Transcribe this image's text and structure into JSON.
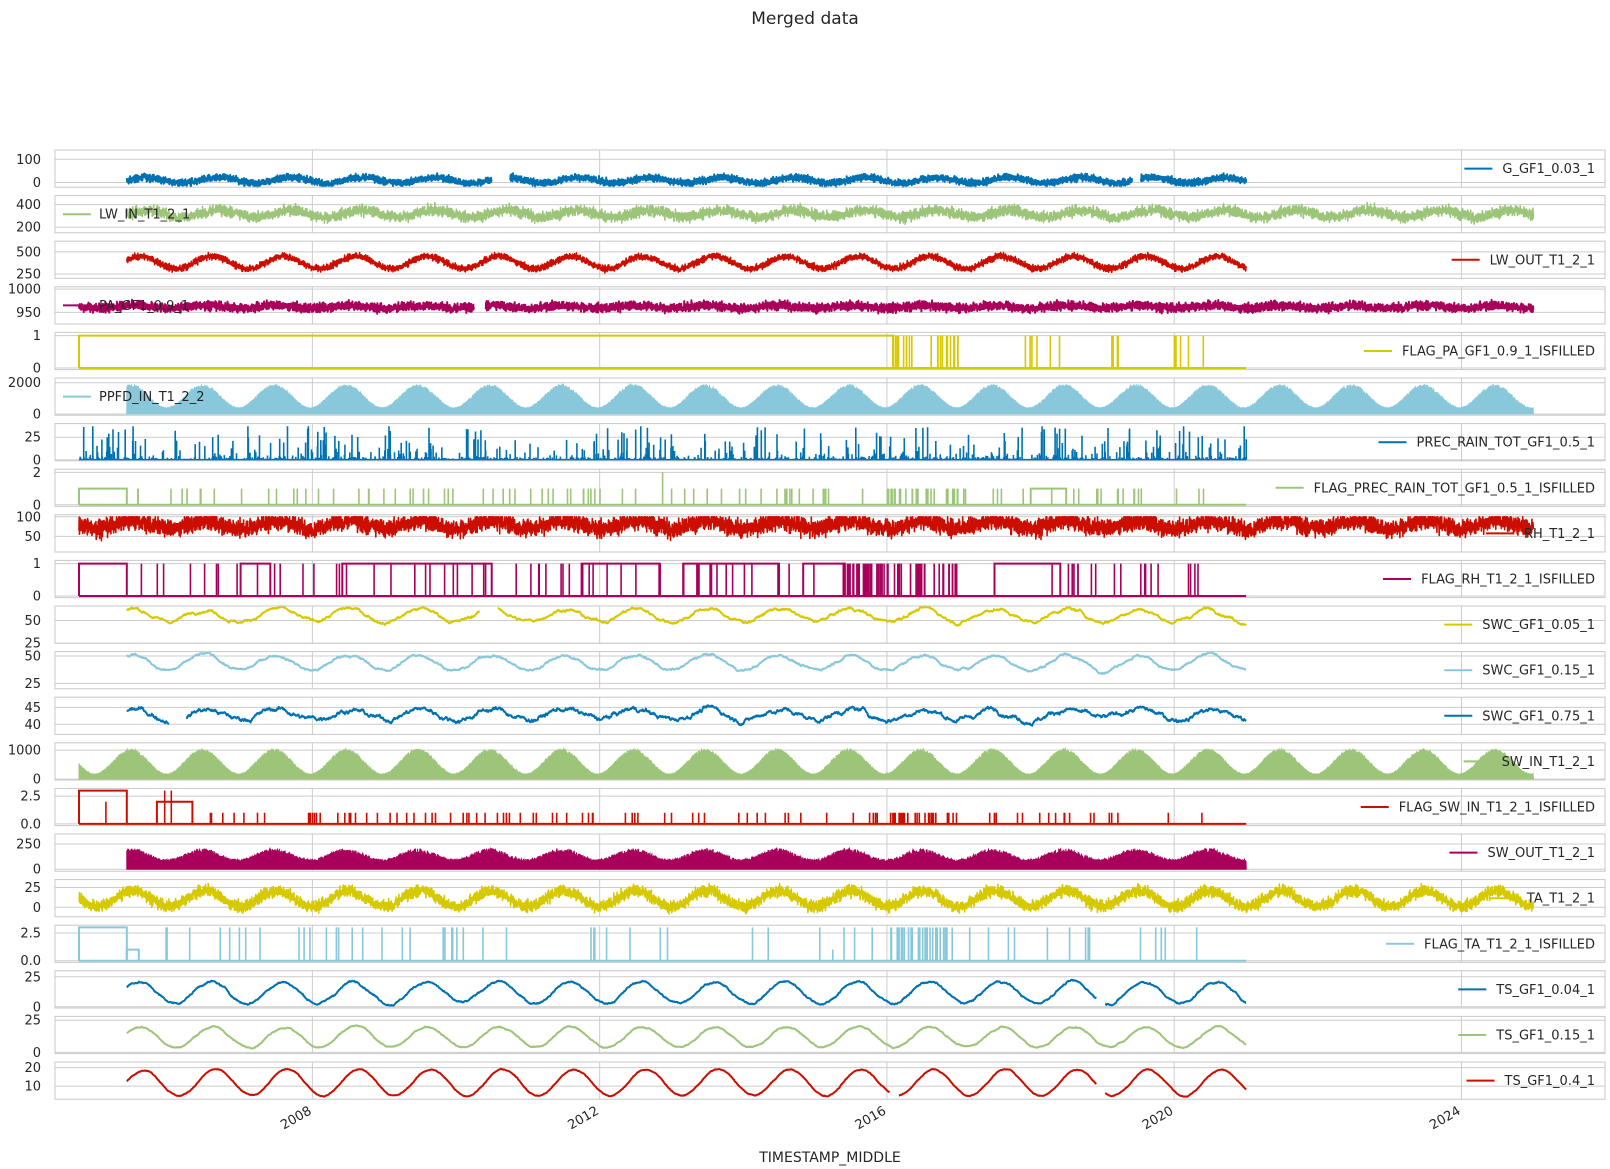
{
  "chart_data": {
    "type": "line",
    "title": "Merged data",
    "xlabel": "TIMESTAMP_MIDDLE",
    "x_range": [
      "2004-06-01",
      "2025-12-31"
    ],
    "x_ticks": [
      "2008",
      "2012",
      "2016",
      "2020",
      "2024"
    ],
    "grid": true,
    "colors": {
      "blue": "#0072b2",
      "green": "#9dc57a",
      "red": "#cc0e00",
      "magenta": "#a8005b",
      "yellow": "#d7c900",
      "cyan": "#89c8da"
    },
    "panels": [
      {
        "series": "G_GF1_0.03_1",
        "color": "#0072b2",
        "legend_pos": "right",
        "style": "osc",
        "start": "2005-06-01",
        "end": "2021-01-01",
        "ylim": [
          -20,
          140
        ],
        "yticks": [
          "100",
          "0"
        ],
        "ytick_values": [
          100,
          0
        ],
        "center": 10,
        "seasonal_amp": 12,
        "noise": 14,
        "peak": 0.7,
        "gaps": [
          [
            "2010-07-01",
            "2010-10-01"
          ],
          [
            "2019-06-01",
            "2019-07-15"
          ]
        ]
      },
      {
        "series": "LW_IN_T1_2_1",
        "color": "#9dc57a",
        "legend_pos": "left",
        "style": "band",
        "start": "2005-06-01",
        "end": "2025-01-01",
        "ylim": [
          150,
          480
        ],
        "yticks": [
          "400",
          "200"
        ],
        "ytick_values": [
          400,
          200
        ],
        "center": 320,
        "seasonal_amp": 30,
        "noise": 45,
        "peak": 0.7
      },
      {
        "series": "LW_OUT_T1_2_1",
        "color": "#cc0e00",
        "legend_pos": "right",
        "style": "band",
        "start": "2005-06-01",
        "end": "2021-01-01",
        "ylim": [
          200,
          620
        ],
        "yticks": [
          "500",
          "250"
        ],
        "ytick_values": [
          500,
          250
        ],
        "center": 380,
        "seasonal_amp": 70,
        "noise": 35,
        "peak": 0.6
      },
      {
        "series": "PA_GF1_0.9_1",
        "color": "#a8005b",
        "legend_pos": "left",
        "style": "osc",
        "start": "2004-10-01",
        "end": "2025-01-01",
        "ylim": [
          925,
          1005
        ],
        "yticks": [
          "1000",
          "950"
        ],
        "ytick_values": [
          1000,
          950
        ],
        "center": 962,
        "seasonal_amp": 3,
        "noise": 9,
        "peak": 0.5,
        "gaps": [
          [
            "2010-04-01",
            "2010-06-01"
          ]
        ]
      },
      {
        "series": "FLAG_PA_GF1_0.9_1_ISFILLED",
        "color": "#d7c900",
        "legend_pos": "right",
        "style": "flag",
        "start": "2004-10-01",
        "end": "2021-01-01",
        "ylim": [
          -0.05,
          1.1
        ],
        "yticks": [
          "1",
          "0"
        ],
        "ytick_values": [
          1,
          0
        ],
        "blocks": [
          {
            "from": "2004-10-01",
            "to": "2016-02-01",
            "level": 1
          }
        ],
        "spikes": [
          {
            "from": "2016-02-01",
            "to": "2017-01-01",
            "level": 1,
            "n": 24
          },
          {
            "from": "2017-09-01",
            "to": "2018-06-01",
            "level": 1,
            "n": 6
          },
          {
            "from": "2019-01-01",
            "to": "2019-06-01",
            "level": 1,
            "n": 4
          },
          {
            "from": "2020-01-01",
            "to": "2020-06-01",
            "level": 1,
            "n": 5
          }
        ]
      },
      {
        "series": "PPFD_IN_T1_2_2",
        "color": "#89c8da",
        "legend_pos": "left",
        "style": "fill",
        "start": "2005-06-01",
        "end": "2025-01-01",
        "ylim": [
          -80,
          2300
        ],
        "yticks": [
          "2000",
          "0"
        ],
        "ytick_values": [
          2000,
          0
        ],
        "peak_max": 1900,
        "peak_min": 400,
        "phase": "2005-06-21"
      },
      {
        "series": "PREC_RAIN_TOT_GF1_0.5_1",
        "color": "#0072b2",
        "legend_pos": "right",
        "style": "spikes",
        "start": "2004-10-01",
        "end": "2021-01-01",
        "ylim": [
          -1,
          40
        ],
        "yticks": [
          "25",
          "0"
        ],
        "ytick_values": [
          25,
          0
        ],
        "max": 37,
        "n": 900
      },
      {
        "series": "FLAG_PREC_RAIN_TOT_GF1_0.5_1_ISFILLED",
        "color": "#9dc57a",
        "legend_pos": "right",
        "style": "flag",
        "start": "2004-10-01",
        "end": "2021-01-01",
        "ylim": [
          -0.1,
          2.2
        ],
        "yticks": [
          "2",
          "0"
        ],
        "ytick_values": [
          2,
          0
        ],
        "blocks": [
          {
            "from": "2004-10-01",
            "to": "2005-06-01",
            "level": 1
          },
          {
            "from": "2018-01-01",
            "to": "2018-07-01",
            "level": 1
          }
        ],
        "spikes": [
          {
            "from": "2005-06-01",
            "to": "2016-01-01",
            "level": 1,
            "n": 70
          },
          {
            "from": "2016-01-01",
            "to": "2017-01-01",
            "level": 1,
            "n": 28
          },
          {
            "from": "2017-01-01",
            "to": "2020-10-01",
            "level": 1,
            "n": 22
          },
          {
            "from": "2012-11-01",
            "to": "2012-12-01",
            "level": 2,
            "n": 1
          }
        ]
      },
      {
        "series": "RH_T1_2_1",
        "color": "#cc0e00",
        "legend_pos": "right",
        "style": "band",
        "start": "2004-10-01",
        "end": "2025-01-01",
        "ylim": [
          10,
          105
        ],
        "yticks": [
          "100",
          "50"
        ],
        "ytick_values": [
          100,
          50
        ],
        "center": 80,
        "seasonal_amp": 10,
        "noise": 22,
        "peak": 0.5,
        "clip_max": 100
      },
      {
        "series": "FLAG_RH_T1_2_1_ISFILLED",
        "color": "#a8005b",
        "legend_pos": "right",
        "style": "flag",
        "start": "2004-10-01",
        "end": "2021-01-01",
        "ylim": [
          -0.05,
          1.1
        ],
        "yticks": [
          "1",
          "0"
        ],
        "ytick_values": [
          1,
          0
        ],
        "blocks": [
          {
            "from": "2004-10-01",
            "to": "2005-06-01",
            "level": 1
          },
          {
            "from": "2007-01-01",
            "to": "2007-06-01",
            "level": 1
          },
          {
            "from": "2008-06-01",
            "to": "2010-07-01",
            "level": 1
          },
          {
            "from": "2011-10-01",
            "to": "2012-11-01",
            "level": 1
          },
          {
            "from": "2013-03-01",
            "to": "2014-07-01",
            "level": 1
          },
          {
            "from": "2014-11-01",
            "to": "2015-06-01",
            "level": 1
          },
          {
            "from": "2017-07-01",
            "to": "2018-06-01",
            "level": 1
          }
        ],
        "spikes": [
          {
            "from": "2005-06-01",
            "to": "2016-01-01",
            "level": 1,
            "n": 60
          },
          {
            "from": "2015-06-01",
            "to": "2017-01-01",
            "level": 1,
            "n": 50
          },
          {
            "from": "2018-01-01",
            "to": "2020-06-01",
            "level": 1,
            "n": 20
          }
        ]
      },
      {
        "series": "SWC_GF1_0.05_1",
        "color": "#d7c900",
        "legend_pos": "right",
        "style": "line",
        "start": "2005-06-01",
        "end": "2021-01-01",
        "ylim": [
          25,
          66
        ],
        "yticks": [
          "50",
          "25"
        ],
        "ytick_values": [
          50,
          25
        ],
        "center": 56,
        "seasonal_amp": 7,
        "noise": 3,
        "gaps": [
          [
            "2010-05-01",
            "2010-08-01"
          ]
        ]
      },
      {
        "series": "SWC_GF1_0.15_1",
        "color": "#89c8da",
        "legend_pos": "right",
        "style": "line",
        "start": "2005-06-01",
        "end": "2021-01-01",
        "ylim": [
          20,
          54
        ],
        "yticks": [
          "50",
          "25"
        ],
        "ytick_values": [
          50,
          25
        ],
        "center": 44,
        "seasonal_amp": 7,
        "noise": 2
      },
      {
        "series": "SWC_GF1_0.75_1",
        "color": "#0072b2",
        "legend_pos": "right",
        "style": "line",
        "start": "2005-06-01",
        "end": "2021-01-01",
        "ylim": [
          37,
          48
        ],
        "yticks": [
          "45",
          "40"
        ],
        "ytick_values": [
          45,
          40
        ],
        "center": 43,
        "seasonal_amp": 1.5,
        "noise": 1.2,
        "gaps": [
          [
            "2006-01-01",
            "2006-04-01"
          ]
        ]
      },
      {
        "series": "SW_IN_T1_2_1",
        "color": "#9dc57a",
        "legend_pos": "right",
        "style": "fill",
        "start": "2004-10-01",
        "end": "2025-01-01",
        "ylim": [
          -30,
          1250
        ],
        "yticks": [
          "1000",
          "0"
        ],
        "ytick_values": [
          1000,
          0
        ],
        "peak_max": 1050,
        "peak_min": 180,
        "phase": "2005-06-21"
      },
      {
        "series": "FLAG_SW_IN_T1_2_1_ISFILLED",
        "color": "#cc0e00",
        "legend_pos": "right",
        "style": "flag",
        "start": "2004-10-01",
        "end": "2021-01-01",
        "ylim": [
          -0.15,
          3.2
        ],
        "yticks": [
          "2.5",
          "0.0"
        ],
        "ytick_values": [
          2.5,
          0
        ],
        "blocks": [
          {
            "from": "2004-10-01",
            "to": "2005-06-01",
            "level": 3
          },
          {
            "from": "2005-11-01",
            "to": "2006-05-01",
            "level": 2
          }
        ],
        "spikes": [
          {
            "from": "2005-02-01",
            "to": "2005-03-01",
            "level": 2,
            "n": 1
          },
          {
            "from": "2005-11-01",
            "to": "2006-02-01",
            "level": 3,
            "n": 2
          },
          {
            "from": "2006-06-01",
            "to": "2016-01-01",
            "level": 1,
            "n": 70
          },
          {
            "from": "2016-01-01",
            "to": "2017-01-01",
            "level": 1,
            "n": 30
          },
          {
            "from": "2017-06-01",
            "to": "2020-06-01",
            "level": 1,
            "n": 18
          }
        ]
      },
      {
        "series": "SW_OUT_T1_2_1",
        "color": "#a8005b",
        "legend_pos": "right",
        "style": "fill",
        "start": "2005-06-01",
        "end": "2021-01-01",
        "ylim": [
          -20,
          350
        ],
        "yticks": [
          "250",
          "0"
        ],
        "ytick_values": [
          250,
          0
        ],
        "peak_max": 190,
        "peak_min": 90,
        "phase": "2005-06-21",
        "noisy": true
      },
      {
        "series": "TA_T1_2_1",
        "color": "#d7c900",
        "legend_pos": "right",
        "style": "band",
        "start": "2004-10-01",
        "end": "2025-01-01",
        "ylim": [
          -12,
          35
        ],
        "yticks": [
          "25",
          "0"
        ],
        "ytick_values": [
          25,
          0
        ],
        "center": 11,
        "seasonal_amp": 10,
        "noise": 7,
        "peak": 0.5
      },
      {
        "series": "FLAG_TA_T1_2_1_ISFILLED",
        "color": "#89c8da",
        "legend_pos": "right",
        "style": "flag",
        "start": "2004-10-01",
        "end": "2021-01-01",
        "ylim": [
          -0.15,
          3.2
        ],
        "yticks": [
          "2.5",
          "0.0"
        ],
        "ytick_values": [
          2.5,
          0
        ],
        "blocks": [
          {
            "from": "2004-10-01",
            "to": "2005-06-01",
            "level": 3
          },
          {
            "from": "2005-06-01",
            "to": "2005-08-01",
            "level": 1
          }
        ],
        "spikes": [
          {
            "from": "2005-06-01",
            "to": "2016-01-01",
            "level": 3,
            "n": 40
          },
          {
            "from": "2016-01-01",
            "to": "2017-01-01",
            "level": 3,
            "n": 30
          },
          {
            "from": "2017-01-01",
            "to": "2020-06-01",
            "level": 3,
            "n": 16
          },
          {
            "from": "2015-03-01",
            "to": "2015-05-01",
            "level": 1,
            "n": 1
          }
        ]
      },
      {
        "series": "TS_GF1_0.04_1",
        "color": "#0072b2",
        "legend_pos": "right",
        "style": "line",
        "start": "2005-06-01",
        "end": "2021-01-01",
        "ylim": [
          -1,
          30
        ],
        "yticks": [
          "25",
          "0"
        ],
        "ytick_values": [
          25,
          0
        ],
        "center": 12,
        "seasonal_amp": 9,
        "noise": 1.5,
        "phase": "2005-08-01",
        "gaps": [
          [
            "2018-12-01",
            "2019-01-15"
          ]
        ]
      },
      {
        "series": "TS_GF1_0.15_1",
        "color": "#9dc57a",
        "legend_pos": "right",
        "style": "line",
        "start": "2005-06-01",
        "end": "2021-01-01",
        "ylim": [
          -1,
          28
        ],
        "yticks": [
          "25",
          "0"
        ],
        "ytick_values": [
          25,
          0
        ],
        "center": 12,
        "seasonal_amp": 8,
        "noise": 1,
        "phase": "2005-08-10"
      },
      {
        "series": "TS_GF1_0.4_1",
        "color": "#cc0e00",
        "legend_pos": "right",
        "style": "line",
        "start": "2005-06-01",
        "end": "2021-01-01",
        "ylim": [
          3,
          23
        ],
        "yticks": [
          "20",
          "10"
        ],
        "ytick_values": [
          20,
          10
        ],
        "center": 12,
        "seasonal_amp": 7,
        "noise": 0.5,
        "phase": "2005-08-25",
        "gaps": [
          [
            "2016-01-15",
            "2016-03-01"
          ],
          [
            "2018-12-01",
            "2019-01-15"
          ]
        ]
      }
    ]
  }
}
